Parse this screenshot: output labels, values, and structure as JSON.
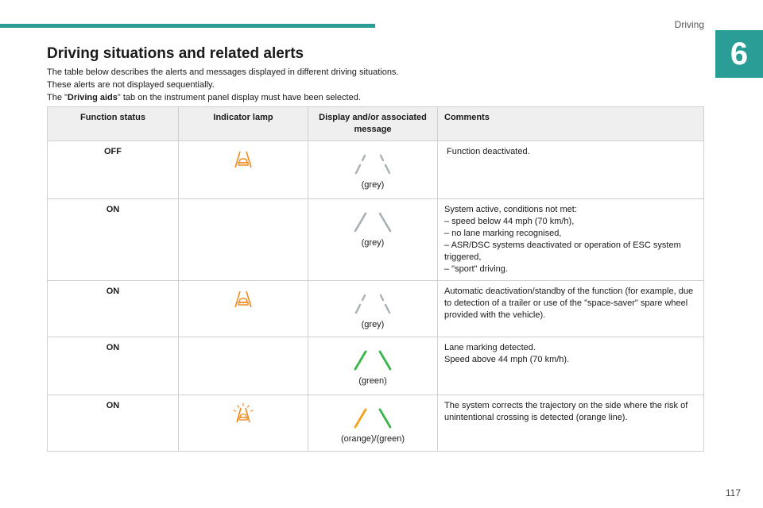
{
  "header": {
    "section": "Driving",
    "chapter": "6"
  },
  "title": "Driving situations and related alerts",
  "intro": {
    "line1": "The table below describes the alerts and messages displayed in different driving situations.",
    "line2": "These alerts are not displayed sequentially.",
    "line3_before": "The \"",
    "line3_bold": "Driving aids",
    "line3_after": "\" tab on the instrument panel display must have been selected."
  },
  "table": {
    "headers": {
      "status": "Function status",
      "lamp": "Indicator lamp",
      "display": "Display and/or associated message",
      "comments": "Comments"
    },
    "rows": [
      {
        "status": "OFF",
        "lamp": "orange-lane-warning-icon",
        "display": "(grey)",
        "lines": "grey-dashed",
        "comments": [
          " Function deactivated."
        ]
      },
      {
        "status": "ON",
        "lamp": "",
        "display": "(grey)",
        "lines": "grey-solid",
        "comments": [
          "System active, conditions not met:",
          "–  speed below 44 mph (70 km/h),",
          "–  no lane marking recognised,",
          "–  ASR/DSC systems deactivated or operation of ESC system triggered,",
          "–  \"sport\" driving."
        ]
      },
      {
        "status": "ON",
        "lamp": "orange-lane-warning-icon",
        "display": "(grey)",
        "lines": "grey-dashed",
        "comments": [
          "Automatic deactivation/standby of the function (for example, due to detection of a trailer or use of the \"space-saver\" spare wheel provided with the vehicle)."
        ]
      },
      {
        "status": "ON",
        "lamp": "",
        "display": "(green)",
        "lines": "green-solid",
        "comments": [
          "Lane marking detected.",
          "Speed above 44 mph (70 km/h)."
        ]
      },
      {
        "status": "ON",
        "lamp": "orange-lane-warning-flashing-icon",
        "display": "(orange)/(green)",
        "lines": "orange-green",
        "comments": [
          "The system corrects the trajectory on the side where the risk of unintentional crossing is detected (orange line)."
        ]
      }
    ]
  },
  "footer": {
    "page": "117"
  },
  "colors": {
    "accent": "#2a9d97",
    "lamp_orange": "#f08a1c",
    "line_grey": "#a7b0b3",
    "line_green": "#3bb54a",
    "line_orange": "#f5a21c"
  }
}
